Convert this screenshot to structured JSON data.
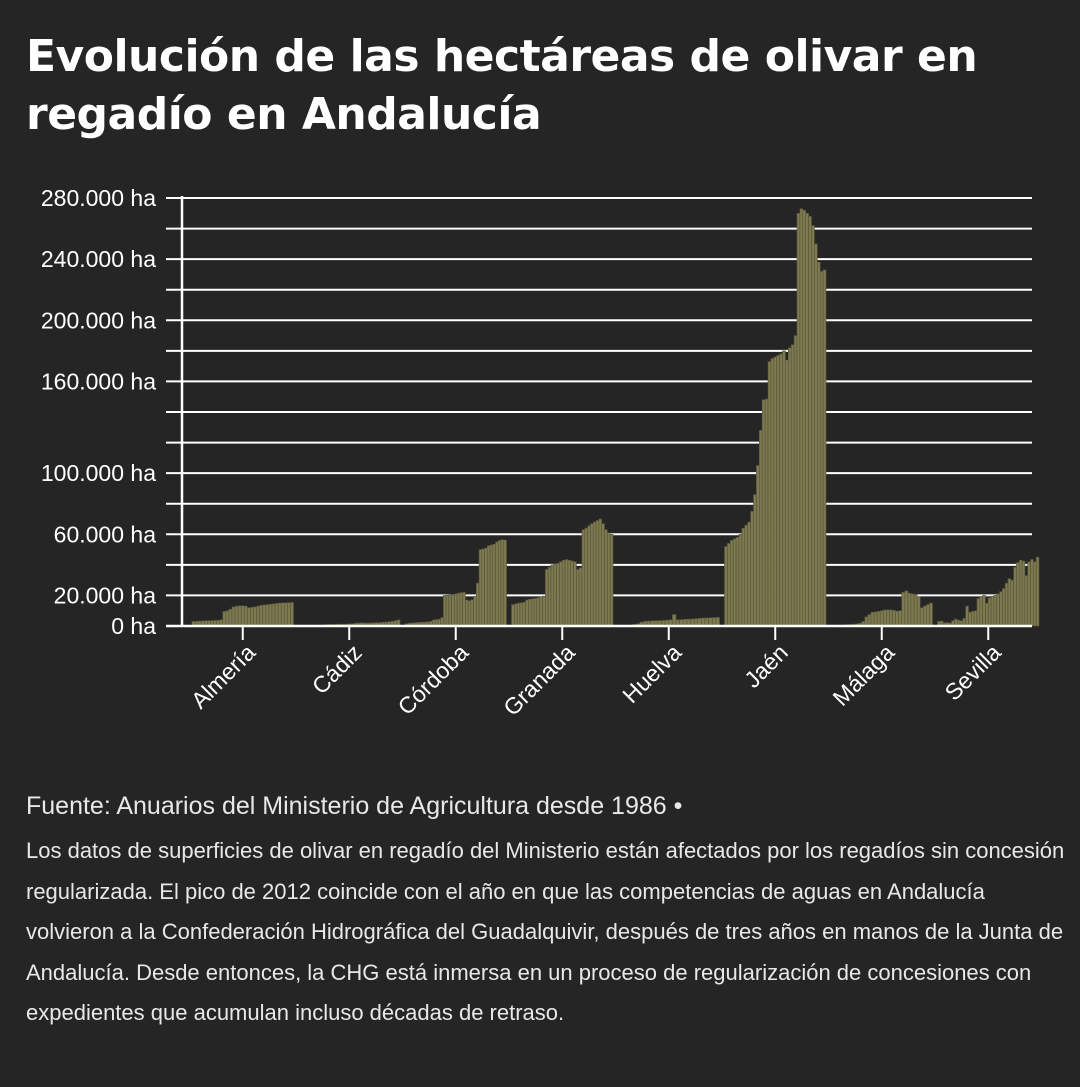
{
  "title": "Evolución de las hectáreas de olivar en regadío en Andalucía",
  "source": "Fuente: Anuarios del Ministerio de Agricultura desde 1986 •",
  "note": "Los datos de superficies de olivar en regadío del Ministerio están afectados por los regadíos sin concesión regularizada. El pico de 2012 coincide con el año en que las competencias de aguas en Andalucía volvieron a la Confederación Hidrográfica del Guadalquivir, después de tres años en manos de la Junta de Andalucía. Desde entonces, la CHG está inmersa en un proceso de regularización de concesiones con expedientes que acumulan incluso décadas de retraso.",
  "colors": {
    "bar": "#7d7a4f",
    "bar_stroke": "#55533a",
    "grid": "#ffffff",
    "text": "#ffffff",
    "background": "#252525"
  },
  "chart_data": {
    "type": "bar",
    "unit": "ha",
    "ylim": [
      0,
      280000
    ],
    "yticks": [
      0,
      20000,
      60000,
      100000,
      160000,
      200000,
      240000,
      280000
    ],
    "ytick_labels": [
      "0 ha",
      "20.000 ha",
      "60.000 ha",
      "100.000 ha",
      "160.000 ha",
      "200.000 ha",
      "240.000 ha",
      "280.000 ha"
    ],
    "gridlines": [
      0,
      20000,
      40000,
      60000,
      80000,
      100000,
      120000,
      140000,
      160000,
      180000,
      200000,
      220000,
      240000,
      260000,
      280000
    ],
    "groups": [
      {
        "name": "Almería",
        "values": [
          3000,
          3000,
          3200,
          3300,
          3400,
          3500,
          3500,
          3600,
          3700,
          4000,
          9500,
          10000,
          11000,
          12500,
          13000,
          13200,
          13200,
          13000,
          12000,
          12200,
          12500,
          13000,
          13500,
          13800,
          14000,
          14300,
          14500,
          14800,
          15000,
          15200,
          15200,
          15300,
          15400
        ]
      },
      {
        "name": "Cádiz",
        "values": [
          0,
          0,
          0,
          0,
          0,
          0,
          0,
          0,
          800,
          900,
          1000,
          1000,
          1100,
          1200,
          1200,
          1300,
          1400,
          1500,
          1800,
          2000,
          2100,
          2000,
          1900,
          2000,
          2100,
          2200,
          2300,
          2400,
          2600,
          2800,
          3000,
          3500,
          4000
        ]
      },
      {
        "name": "Córdoba",
        "values": [
          1500,
          1800,
          2000,
          2200,
          2300,
          2400,
          2500,
          2600,
          2700,
          3000,
          4000,
          4200,
          4500,
          5500,
          20000,
          20200,
          20300,
          20400,
          21000,
          21500,
          21800,
          22000,
          17000,
          16500,
          17200,
          19500,
          28000,
          50000,
          50500,
          51000,
          52500,
          53000,
          53500,
          55000,
          56000,
          56500,
          56200
        ]
      },
      {
        "name": "Granada",
        "values": [
          14000,
          14500,
          15000,
          15200,
          15500,
          17000,
          17500,
          17800,
          18000,
          18500,
          19000,
          19500,
          37000,
          38500,
          40000,
          40500,
          41000,
          42000,
          43000,
          43500,
          43000,
          42500,
          42000,
          37000,
          38000,
          63000,
          64000,
          65500,
          67000,
          68000,
          69000,
          70000,
          67000,
          63000,
          61000,
          60000
        ]
      },
      {
        "name": "Huelva",
        "values": [
          0,
          0,
          0,
          0,
          1000,
          1500,
          2500,
          3000,
          3200,
          3400,
          3500,
          3500,
          3600,
          3800,
          4000,
          7500,
          4000,
          4200,
          4400,
          4500,
          4600,
          4800,
          5000,
          5200,
          5300,
          5400,
          5500,
          5600
        ]
      },
      {
        "name": "Jaén",
        "values": [
          52000,
          54000,
          56000,
          57000,
          58000,
          60000,
          64000,
          66000,
          68000,
          75000,
          86000,
          105000,
          128000,
          148000,
          148500,
          173000,
          175000,
          176000,
          177000,
          178000,
          180000,
          174000,
          182000,
          184000,
          190000,
          270000,
          273000,
          272000,
          270000,
          268000,
          262000,
          250000,
          238000,
          232000,
          233000
        ]
      },
      {
        "name": "Málaga",
        "values": [
          0,
          0,
          0,
          500,
          800,
          900,
          1000,
          1200,
          1400,
          1800,
          3000,
          6000,
          7500,
          9000,
          9200,
          9600,
          10000,
          10500,
          10600,
          10500,
          10300,
          9700,
          10000,
          22000,
          23000,
          21500,
          21000,
          20500,
          19000,
          12000,
          13000,
          14000,
          15000
        ]
      },
      {
        "name": "Sevilla",
        "values": [
          3000,
          3200,
          2000,
          2200,
          2000,
          3500,
          4500,
          3800,
          3500,
          5000,
          13000,
          9000,
          9500,
          10000,
          18000,
          19000,
          20000,
          15000,
          18500,
          19500,
          20000,
          21000,
          22500,
          24500,
          28000,
          31000,
          30000,
          38500,
          41500,
          43000,
          42500,
          33000,
          42000,
          43500,
          42000,
          45000
        ]
      }
    ]
  }
}
